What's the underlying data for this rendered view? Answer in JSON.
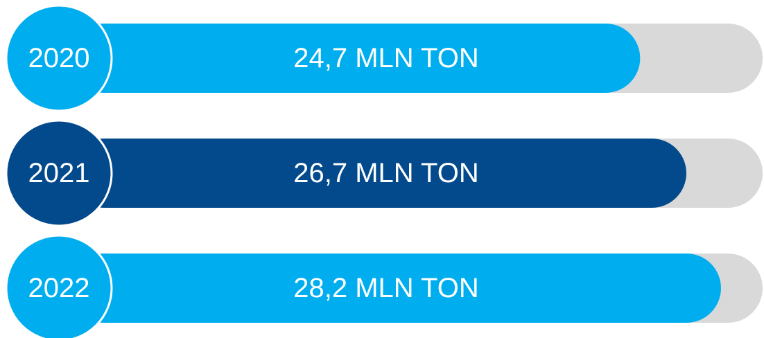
{
  "chart_data": {
    "type": "bar",
    "categories": [
      "2020",
      "2021",
      "2022"
    ],
    "values": [
      24.7,
      26.7,
      28.2
    ],
    "value_labels": [
      "24,7 MLN TON",
      "26,7 MLN TON",
      "28,2 MLN TON"
    ],
    "colors": [
      "#00aeef",
      "#034a8c",
      "#00aeef"
    ],
    "track_color": "#d9d9d9",
    "xlim": [
      0,
      30
    ]
  }
}
